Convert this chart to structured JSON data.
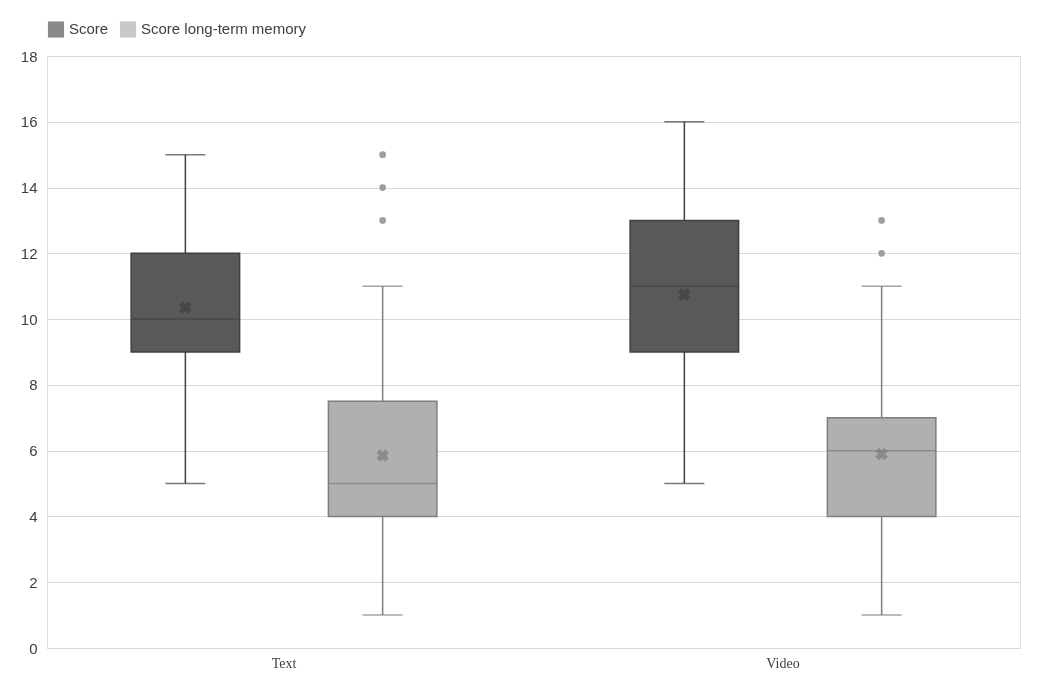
{
  "chart_data": {
    "type": "box",
    "categories": [
      "Text",
      "Video"
    ],
    "series": [
      {
        "name": "Score",
        "color": "#595959",
        "boxes": [
          {
            "low": 5,
            "q1": 9,
            "median": 10,
            "q3": 12,
            "high": 15,
            "mean": 10.35
          },
          {
            "low": 5,
            "q1": 9,
            "median": 11,
            "q3": 13,
            "high": 16,
            "mean": 10.75
          }
        ]
      },
      {
        "name": "Score long-term memory",
        "color": "#b0b0b0",
        "boxes": [
          {
            "low": 1,
            "q1": 4,
            "median": 5,
            "q3": 7.5,
            "high": 11,
            "mean": 5.85,
            "outliers": [
              13,
              14,
              15
            ]
          },
          {
            "low": 1,
            "q1": 4,
            "median": 6,
            "q3": 7,
            "high": 11,
            "mean": 5.9,
            "outliers": [
              12,
              13
            ]
          }
        ]
      }
    ],
    "ylim": [
      0,
      18
    ],
    "yticks": [
      0,
      2,
      4,
      6,
      8,
      10,
      12,
      14,
      16,
      18
    ],
    "grid": "y",
    "legend": "top"
  }
}
